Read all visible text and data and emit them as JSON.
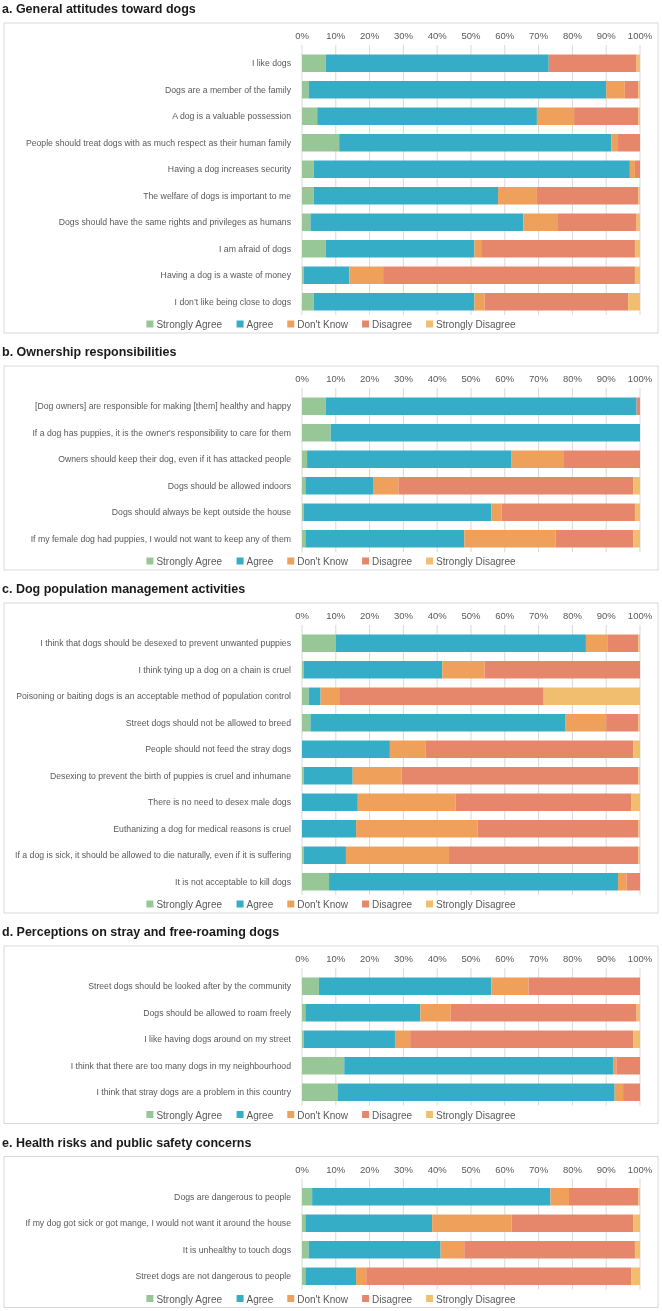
{
  "chart_data": [
    {
      "type": "bar",
      "orientation": "horizontal",
      "stacked": true,
      "title": "a. General attitudes toward dogs",
      "categories": [
        "I like dogs",
        "Dogs are a member of the family",
        "A dog is a valuable possession",
        "People should treat dogs with as much respect as their human family",
        "Having a dog increases security",
        "The welfare of dogs is important to me",
        "Dogs should have the same rights and privileges as humans",
        "I am afraid of dogs",
        "Having a dog is a waste of money",
        "I don’t like being close to dogs"
      ],
      "series": [
        {
          "name": "Strongly Agree",
          "color": "#97c797",
          "values": [
            7,
            2,
            4.5,
            11,
            3.5,
            3.5,
            2.5,
            7,
            0.5,
            3.5
          ]
        },
        {
          "name": "Agree",
          "color": "#35adc6",
          "values": [
            66,
            88,
            65,
            80.5,
            93.5,
            54.5,
            63,
            44,
            13.5,
            47.5
          ]
        },
        {
          "name": "Don't Know",
          "color": "#efa05b",
          "values": [
            0,
            5.5,
            11,
            2,
            1.5,
            11.5,
            10,
            2,
            10,
            3
          ]
        },
        {
          "name": "Disagree",
          "color": "#e6876b",
          "values": [
            26,
            4,
            19,
            6.5,
            1.5,
            30,
            23.5,
            45.5,
            74.5,
            42.5
          ]
        },
        {
          "name": "Strongly Disagree",
          "color": "#f0be6e",
          "values": [
            1,
            0.5,
            0.5,
            0,
            0,
            0.5,
            1,
            1.5,
            1.5,
            3.5
          ]
        }
      ],
      "xlim": [
        0,
        100
      ],
      "xticks": [
        {
          "value": 0,
          "label": "0%"
        },
        {
          "value": 10,
          "label": "10%"
        },
        {
          "value": 20,
          "label": "20%"
        },
        {
          "value": 30,
          "label": "30%"
        },
        {
          "value": 40,
          "label": "40%"
        },
        {
          "value": 50,
          "label": "50%"
        },
        {
          "value": 60,
          "label": "60%"
        },
        {
          "value": 70,
          "label": "70%"
        },
        {
          "value": 80,
          "label": "80%"
        },
        {
          "value": 90,
          "label": "90%"
        },
        {
          "value": 100,
          "label": "100%"
        }
      ],
      "grid": "x",
      "legend": "bottom"
    },
    {
      "type": "bar",
      "orientation": "horizontal",
      "stacked": true,
      "title": "b. Ownership responsibilities",
      "categories": [
        "[Dog owners] are responsible for making [them] healthy and happy",
        "If a dog has puppies, it is the owner's responsibility to care for them",
        "Owners should keep their dog, even if it has attacked people",
        "Dogs should be allowed indoors",
        "Dogs should always be kept outside the house",
        "If my female dog had puppies, I would not want to keep any of them"
      ],
      "series": [
        {
          "name": "Strongly Agree",
          "color": "#97c797",
          "values": [
            7,
            8.5,
            1.5,
            1,
            0.5,
            1
          ]
        },
        {
          "name": "Agree",
          "color": "#35adc6",
          "values": [
            92,
            91.5,
            60.5,
            20,
            55.5,
            47
          ]
        },
        {
          "name": "Don't Know",
          "color": "#efa05b",
          "values": [
            0,
            0,
            15.5,
            7.5,
            3,
            27
          ]
        },
        {
          "name": "Disagree",
          "color": "#e6876b",
          "values": [
            1,
            0,
            22.5,
            69.5,
            39.5,
            23
          ]
        },
        {
          "name": "Strongly Disagree",
          "color": "#f0be6e",
          "values": [
            0,
            0,
            0,
            2,
            1.5,
            2
          ]
        }
      ],
      "xlim": [
        0,
        100
      ],
      "xticks": [
        {
          "value": 0,
          "label": "0%"
        },
        {
          "value": 10,
          "label": "10%"
        },
        {
          "value": 20,
          "label": "20%"
        },
        {
          "value": 30,
          "label": "30%"
        },
        {
          "value": 40,
          "label": "40%"
        },
        {
          "value": 50,
          "label": "50%"
        },
        {
          "value": 60,
          "label": "60%"
        },
        {
          "value": 70,
          "label": "70%"
        },
        {
          "value": 80,
          "label": "80%"
        },
        {
          "value": 90,
          "label": "90%"
        },
        {
          "value": 100,
          "label": "100%"
        }
      ],
      "grid": "x",
      "legend": "bottom"
    },
    {
      "type": "bar",
      "orientation": "horizontal",
      "stacked": true,
      "title": "c. Dog population management activities",
      "categories": [
        "I think that dogs should be desexed to prevent unwanted puppies",
        "I think tying up a dog on a chain is cruel",
        "Poisoning or baiting dogs is an acceptable method of population control",
        "Street dogs should not be allowed to breed",
        "People should not feed the stray dogs",
        "Desexing to prevent the birth of puppies is cruel and inhumane",
        "There is no need to desex male dogs",
        "Euthanizing a dog for medical reasons is cruel",
        "If a dog is sick, it should be allowed to die naturally, even if it is suffering",
        "It is not acceptable to kill dogs"
      ],
      "series": [
        {
          "name": "Strongly Agree",
          "color": "#97c797",
          "values": [
            10,
            0.5,
            2,
            2.5,
            0,
            0.5,
            0,
            0,
            0.5,
            8
          ]
        },
        {
          "name": "Agree",
          "color": "#35adc6",
          "values": [
            74,
            41,
            3.5,
            75.5,
            26,
            14.5,
            16.5,
            16,
            12.5,
            85.5
          ]
        },
        {
          "name": "Don't Know",
          "color": "#efa05b",
          "values": [
            6.5,
            12.5,
            5.5,
            12,
            10.5,
            14.5,
            29,
            36,
            30.5,
            2.5
          ]
        },
        {
          "name": "Disagree",
          "color": "#e6876b",
          "values": [
            9,
            46,
            60.5,
            9.5,
            61.5,
            70,
            52,
            47.5,
            56,
            4
          ]
        },
        {
          "name": "Strongly Disagree",
          "color": "#f0be6e",
          "values": [
            0.5,
            0,
            28.5,
            0.5,
            2,
            0.5,
            2.5,
            0.5,
            0.5,
            0
          ]
        }
      ],
      "xlim": [
        0,
        100
      ],
      "xticks": [
        {
          "value": 0,
          "label": "0%"
        },
        {
          "value": 10,
          "label": "10%"
        },
        {
          "value": 20,
          "label": "20%"
        },
        {
          "value": 30,
          "label": "30%"
        },
        {
          "value": 40,
          "label": "40%"
        },
        {
          "value": 50,
          "label": "50%"
        },
        {
          "value": 60,
          "label": "60%"
        },
        {
          "value": 70,
          "label": "70%"
        },
        {
          "value": 80,
          "label": "80%"
        },
        {
          "value": 90,
          "label": "90%"
        },
        {
          "value": 100,
          "label": "100%"
        }
      ],
      "grid": "x",
      "legend": "bottom"
    },
    {
      "type": "bar",
      "orientation": "horizontal",
      "stacked": true,
      "title": "d. Perceptions on stray and free-roaming dogs",
      "categories": [
        "Street dogs should be looked after by the community",
        "Dogs should be allowed to roam freely",
        "I like having dogs around on my street",
        "I think that there are too many dogs in my neighbourhood",
        "I think that stray dogs are a problem in this country"
      ],
      "series": [
        {
          "name": "Strongly Agree",
          "color": "#97c797",
          "values": [
            5,
            1,
            0.5,
            12.5,
            10.5
          ]
        },
        {
          "name": "Agree",
          "color": "#35adc6",
          "values": [
            51,
            34,
            27,
            79.5,
            82
          ]
        },
        {
          "name": "Don't Know",
          "color": "#efa05b",
          "values": [
            11,
            9,
            4.5,
            1,
            2.5
          ]
        },
        {
          "name": "Disagree",
          "color": "#e6876b",
          "values": [
            33,
            55,
            66,
            7,
            5
          ]
        },
        {
          "name": "Strongly Disagree",
          "color": "#f0be6e",
          "values": [
            0,
            1,
            2,
            0,
            0
          ]
        }
      ],
      "xlim": [
        0,
        100
      ],
      "xticks": [
        {
          "value": 0,
          "label": "0%"
        },
        {
          "value": 10,
          "label": "10%"
        },
        {
          "value": 20,
          "label": "20%"
        },
        {
          "value": 30,
          "label": "30%"
        },
        {
          "value": 40,
          "label": "40%"
        },
        {
          "value": 50,
          "label": "50%"
        },
        {
          "value": 60,
          "label": "60%"
        },
        {
          "value": 70,
          "label": "70%"
        },
        {
          "value": 80,
          "label": "80%"
        },
        {
          "value": 90,
          "label": "90%"
        },
        {
          "value": 100,
          "label": "100%"
        }
      ],
      "grid": "x",
      "legend": "bottom"
    },
    {
      "type": "bar",
      "orientation": "horizontal",
      "stacked": true,
      "title": "e. Health risks and public safety concerns",
      "categories": [
        "Dogs are dangerous to people",
        "If my dog got sick or got mange, I would not want it around the house",
        "It is unhealthy to touch dogs",
        "Street dogs are not dangerous to people"
      ],
      "series": [
        {
          "name": "Strongly Agree",
          "color": "#97c797",
          "values": [
            3,
            1,
            2,
            1
          ]
        },
        {
          "name": "Agree",
          "color": "#35adc6",
          "values": [
            70.5,
            37.5,
            39,
            15
          ]
        },
        {
          "name": "Don't Know",
          "color": "#efa05b",
          "values": [
            5.5,
            23.5,
            7,
            3
          ]
        },
        {
          "name": "Disagree",
          "color": "#e6876b",
          "values": [
            20.5,
            36,
            50.5,
            78.5
          ]
        },
        {
          "name": "Strongly Disagree",
          "color": "#f0be6e",
          "values": [
            0.5,
            2,
            1.5,
            2.5
          ]
        }
      ],
      "xlim": [
        0,
        100
      ],
      "xticks": [
        {
          "value": 0,
          "label": "0%"
        },
        {
          "value": 10,
          "label": "10%"
        },
        {
          "value": 20,
          "label": "20%"
        },
        {
          "value": 30,
          "label": "30%"
        },
        {
          "value": 40,
          "label": "40%"
        },
        {
          "value": 50,
          "label": "50%"
        },
        {
          "value": 60,
          "label": "60%"
        },
        {
          "value": 70,
          "label": "70%"
        },
        {
          "value": 80,
          "label": "80%"
        },
        {
          "value": 90,
          "label": "90%"
        },
        {
          "value": 100,
          "label": "100%"
        }
      ],
      "grid": "x",
      "legend": "bottom"
    }
  ]
}
